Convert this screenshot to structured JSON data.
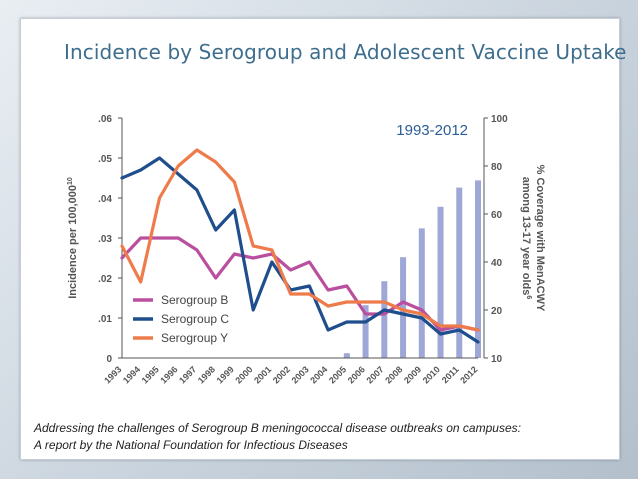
{
  "slide": {
    "title": "Incidence by Serogroup and Adolescent Vaccine Uptake",
    "citation_line1": "Addressing the challenges of Serogroup B meningococcal disease outbreaks on campuses:",
    "citation_line2": "A report by the National Foundation for Infectious Diseases"
  },
  "chart_data": {
    "type": "line",
    "title": "1993-2012",
    "ylabel": "Incidence per 100,000",
    "ylabel_sup": "10",
    "y2label_line1": "% Coverage with MenACWY",
    "y2label_line2": "among 13-17 year olds",
    "y2label_sup": "6",
    "ylim": [
      0,
      0.06
    ],
    "yticks": [
      0,
      0.01,
      0.02,
      0.03,
      0.04,
      0.05,
      0.06
    ],
    "ytick_labels": [
      "0",
      ".01",
      ".02",
      ".03",
      ".04",
      ".05",
      ".06"
    ],
    "y2lim": [
      10,
      100
    ],
    "y2ticks": [
      10,
      20,
      40,
      60,
      80,
      100
    ],
    "y2tick_labels": [
      "10",
      "20",
      "40",
      "60",
      "80",
      "100"
    ],
    "x": [
      "1993",
      "1994",
      "1995",
      "1996",
      "1997",
      "1998",
      "1999",
      "2000",
      "2001",
      "2002",
      "2003",
      "2004",
      "2005",
      "2006",
      "2007",
      "2008",
      "2009",
      "2010",
      "2011",
      "2012"
    ],
    "series": [
      {
        "name": "Serogroup B",
        "color": "#b94f9e",
        "values": [
          0.025,
          0.03,
          0.03,
          0.03,
          0.027,
          0.02,
          0.026,
          0.025,
          0.026,
          0.022,
          0.024,
          0.017,
          0.018,
          0.011,
          0.011,
          0.014,
          0.012,
          0.007,
          0.008,
          0.007
        ]
      },
      {
        "name": "Serogroup C",
        "color": "#1f4e8c",
        "values": [
          0.045,
          0.047,
          0.05,
          0.046,
          0.042,
          0.032,
          0.037,
          0.012,
          0.024,
          0.017,
          0.018,
          0.007,
          0.009,
          0.009,
          0.012,
          0.011,
          0.01,
          0.006,
          0.007,
          0.004
        ]
      },
      {
        "name": "Serogroup Y",
        "color": "#ee7b4a",
        "values": [
          0.028,
          0.019,
          0.04,
          0.048,
          0.052,
          0.049,
          0.044,
          0.028,
          0.027,
          0.016,
          0.016,
          0.013,
          0.014,
          0.014,
          0.014,
          0.012,
          0.011,
          0.008,
          0.008,
          0.007
        ]
      }
    ],
    "bars": {
      "name": "% Coverage with MenACWY",
      "color": "#9fa7d6",
      "x": [
        "2005",
        "2006",
        "2007",
        "2008",
        "2009",
        "2010",
        "2011",
        "2012"
      ],
      "values": [
        11,
        22,
        32,
        42,
        54,
        63,
        71,
        74
      ]
    },
    "legend": "bottom-left",
    "grid": false
  }
}
